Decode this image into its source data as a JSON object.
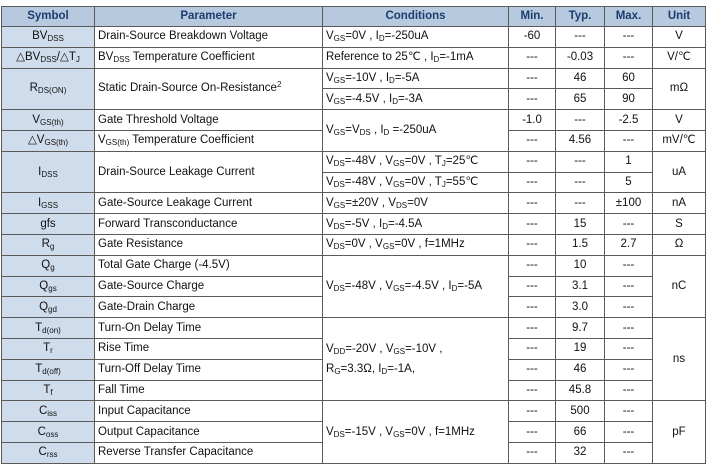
{
  "headers": {
    "symbol": "Symbol",
    "parameter": "Parameter",
    "conditions": "Conditions",
    "min": "Min.",
    "typ": "Typ.",
    "max": "Max.",
    "unit": "Unit"
  },
  "rows": {
    "bvdss": {
      "sym_main": "BV",
      "sym_sub": "DSS",
      "param": "Drain-Source Breakdown Voltage",
      "cond": [
        [
          "V",
          "GS",
          "=0V , "
        ],
        [
          "I",
          "D",
          "=-250uA"
        ]
      ],
      "min": "-60",
      "typ": "---",
      "max": "---",
      "unit": "V"
    },
    "dbvdss": {
      "sym_a": "△BV",
      "sym_a_sub": "DSS",
      "sym_b": "/△T",
      "sym_b_sub": "J",
      "param_main": "BV",
      "param_sub": "DSS",
      "param_rest": " Temperature Coefficient",
      "cond": "Reference to 25℃ , I",
      "cond_sub": "D",
      "cond_rest": "=-1mA",
      "min": "---",
      "typ": "-0.03",
      "max": "---",
      "unit": "V/℃"
    },
    "rdson": {
      "sym_main": "R",
      "sym_sub": "DS(ON)",
      "param": "Static Drain-Source On-Resistance",
      "param_sup": "2",
      "unit": "mΩ",
      "sub_rows": [
        {
          "cond": [
            [
              "V",
              "GS",
              "=-10V , "
            ],
            [
              "I",
              "D",
              "=-5A"
            ]
          ],
          "min": "---",
          "typ": "46",
          "max": "60"
        },
        {
          "cond": [
            [
              "V",
              "GS",
              "=-4.5V , "
            ],
            [
              "I",
              "D",
              "=-3A"
            ]
          ],
          "min": "---",
          "typ": "65",
          "max": "90"
        }
      ]
    },
    "vgsth": {
      "sym_main": "V",
      "sym_sub": "GS(th)",
      "param": "Gate Threshold Voltage",
      "min": "-1.0",
      "typ": "---",
      "max": "-2.5",
      "unit": "V"
    },
    "dvgsth": {
      "sym_a": "△V",
      "sym_a_sub": "GS(th)",
      "param_main": "V",
      "param_sub": "GS(th)",
      "param_rest": " Temperature Coefficient",
      "min": "---",
      "typ": "4.56",
      "max": "---",
      "unit": "mV/℃"
    },
    "vgsth_cond": [
      [
        "V",
        "GS",
        "=V"
      ],
      [
        "",
        "DS",
        ""
      ],
      [
        " , I",
        "D",
        " =-250uA"
      ]
    ],
    "idss": {
      "sym_main": "I",
      "sym_sub": "DSS",
      "param": "Drain-Source Leakage Current",
      "unit": "uA",
      "sub_rows": [
        {
          "cond": [
            [
              "V",
              "DS",
              "=-48V , "
            ],
            [
              "V",
              "GS",
              "=0V , "
            ],
            [
              "T",
              "J",
              "=25℃"
            ]
          ],
          "min": "---",
          "typ": "---",
          "max": "1"
        },
        {
          "cond": [
            [
              "V",
              "DS",
              "=-48V , "
            ],
            [
              "V",
              "GS",
              "=0V , "
            ],
            [
              "T",
              "J",
              "=55℃"
            ]
          ],
          "min": "---",
          "typ": "---",
          "max": "5"
        }
      ]
    },
    "igss": {
      "sym_main": "I",
      "sym_sub": "GSS",
      "param": "Gate-Source Leakage Current",
      "cond": [
        [
          "V",
          "GS",
          "=±20V , "
        ],
        [
          "V",
          "DS",
          "=0V"
        ]
      ],
      "min": "---",
      "typ": "---",
      "max": "±100",
      "unit": "nA"
    },
    "gfs": {
      "sym_main": "gfs",
      "sym_sub": "",
      "param": "Forward Transconductance",
      "cond": [
        [
          "V",
          "DS",
          "=-5V , "
        ],
        [
          "I",
          "D",
          "=-4.5A"
        ]
      ],
      "min": "---",
      "typ": "15",
      "max": "---",
      "unit": "S"
    },
    "rg": {
      "sym_main": "R",
      "sym_sub": "g",
      "param": "Gate Resistance",
      "cond": [
        [
          "V",
          "DS",
          "=0V , "
        ],
        [
          "V",
          "GS",
          "=0V , f=1MHz"
        ]
      ],
      "min": "---",
      "typ": "1.5",
      "max": "2.7",
      "unit": "Ω"
    },
    "charge": {
      "cond": [
        [
          "V",
          "DS",
          "=-48V , "
        ],
        [
          "V",
          "GS",
          "=-4.5V , "
        ],
        [
          "I",
          "D",
          "=-5A"
        ]
      ],
      "unit": "nC",
      "items": [
        {
          "sym_main": "Q",
          "sym_sub": "g",
          "param": "Total Gate Charge (-4.5V)",
          "min": "---",
          "typ": "10",
          "max": "---"
        },
        {
          "sym_main": "Q",
          "sym_sub": "gs",
          "param": "Gate-Source Charge",
          "min": "---",
          "typ": "3.1",
          "max": "---"
        },
        {
          "sym_main": "Q",
          "sym_sub": "gd",
          "param": "Gate-Drain Charge",
          "min": "---",
          "typ": "3.0",
          "max": "---"
        }
      ]
    },
    "timing": {
      "cond_line1": [
        [
          "V",
          "DD",
          "=-20V , "
        ],
        [
          "V",
          "GS",
          "=-10V ,"
        ]
      ],
      "cond_line2": [
        [
          "R",
          "G",
          "=3.3Ω, "
        ],
        [
          "I",
          "D",
          "=-1A,"
        ]
      ],
      "unit": "ns",
      "items": [
        {
          "sym_main": "T",
          "sym_sub": "d(on)",
          "param": "Turn-On Delay Time",
          "min": "---",
          "typ": "9.7",
          "max": "---"
        },
        {
          "sym_main": "T",
          "sym_sub": "r",
          "param": "Rise Time",
          "min": "---",
          "typ": "19",
          "max": "---"
        },
        {
          "sym_main": "T",
          "sym_sub": "d(off)",
          "param": "Turn-Off Delay Time",
          "min": "---",
          "typ": "46",
          "max": "---"
        },
        {
          "sym_main": "T",
          "sym_sub": "f",
          "param": "Fall Time",
          "min": "---",
          "typ": "45.8",
          "max": "---"
        }
      ]
    },
    "capacitance": {
      "cond": [
        [
          "V",
          "DS",
          "=-15V , "
        ],
        [
          "V",
          "GS",
          "=0V , f=1MHz"
        ]
      ],
      "unit": "pF",
      "items": [
        {
          "sym_main": "C",
          "sym_sub": "iss",
          "param": "Input Capacitance",
          "min": "---",
          "typ": "500",
          "max": "---"
        },
        {
          "sym_main": "C",
          "sym_sub": "oss",
          "param": "Output Capacitance",
          "min": "---",
          "typ": "66",
          "max": "---"
        },
        {
          "sym_main": "C",
          "sym_sub": "rss",
          "param": "Reverse Transfer Capacitance",
          "min": "---",
          "typ": "32",
          "max": "---"
        }
      ]
    }
  }
}
